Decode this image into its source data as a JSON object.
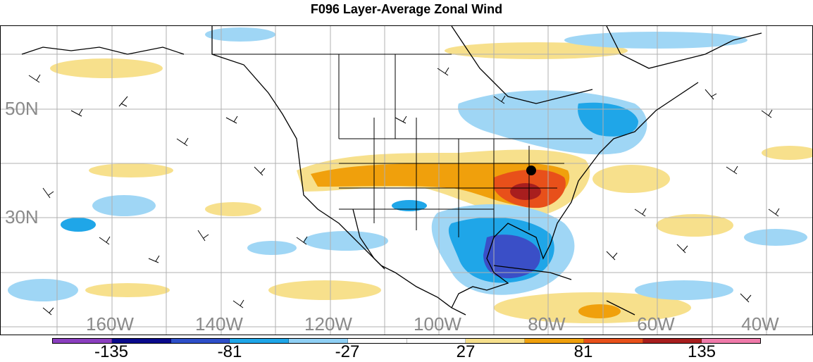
{
  "title": "F096 Layer-Average Zonal Wind",
  "lat_labels": [
    "50N",
    "30N"
  ],
  "lon_labels": [
    "160W",
    "140W",
    "120W",
    "100W",
    "80W",
    "60W",
    "40W"
  ],
  "colorbar": {
    "labels": [
      "-135",
      "-81",
      "-27",
      "27",
      "81",
      "135"
    ],
    "colors": [
      "#8b3fbf",
      "#0a0a8c",
      "#2e4fc9",
      "#1fa6e8",
      "#8fd0f5",
      "#ffffff",
      "#ffffff",
      "#f7e08c",
      "#f0a00c",
      "#e8501a",
      "#a81e1e",
      "#f07aaa"
    ]
  },
  "layers": {
    "positive_color": "#f7e08c",
    "strong_positive_color": "#f0a00c",
    "very_strong_positive_color": "#e8501a",
    "core_positive_color": "#a81e1e",
    "negative_color": "#9fd6f5",
    "strong_negative_color": "#1fa6e8",
    "very_strong_negative_color": "#3a4fc7"
  }
}
